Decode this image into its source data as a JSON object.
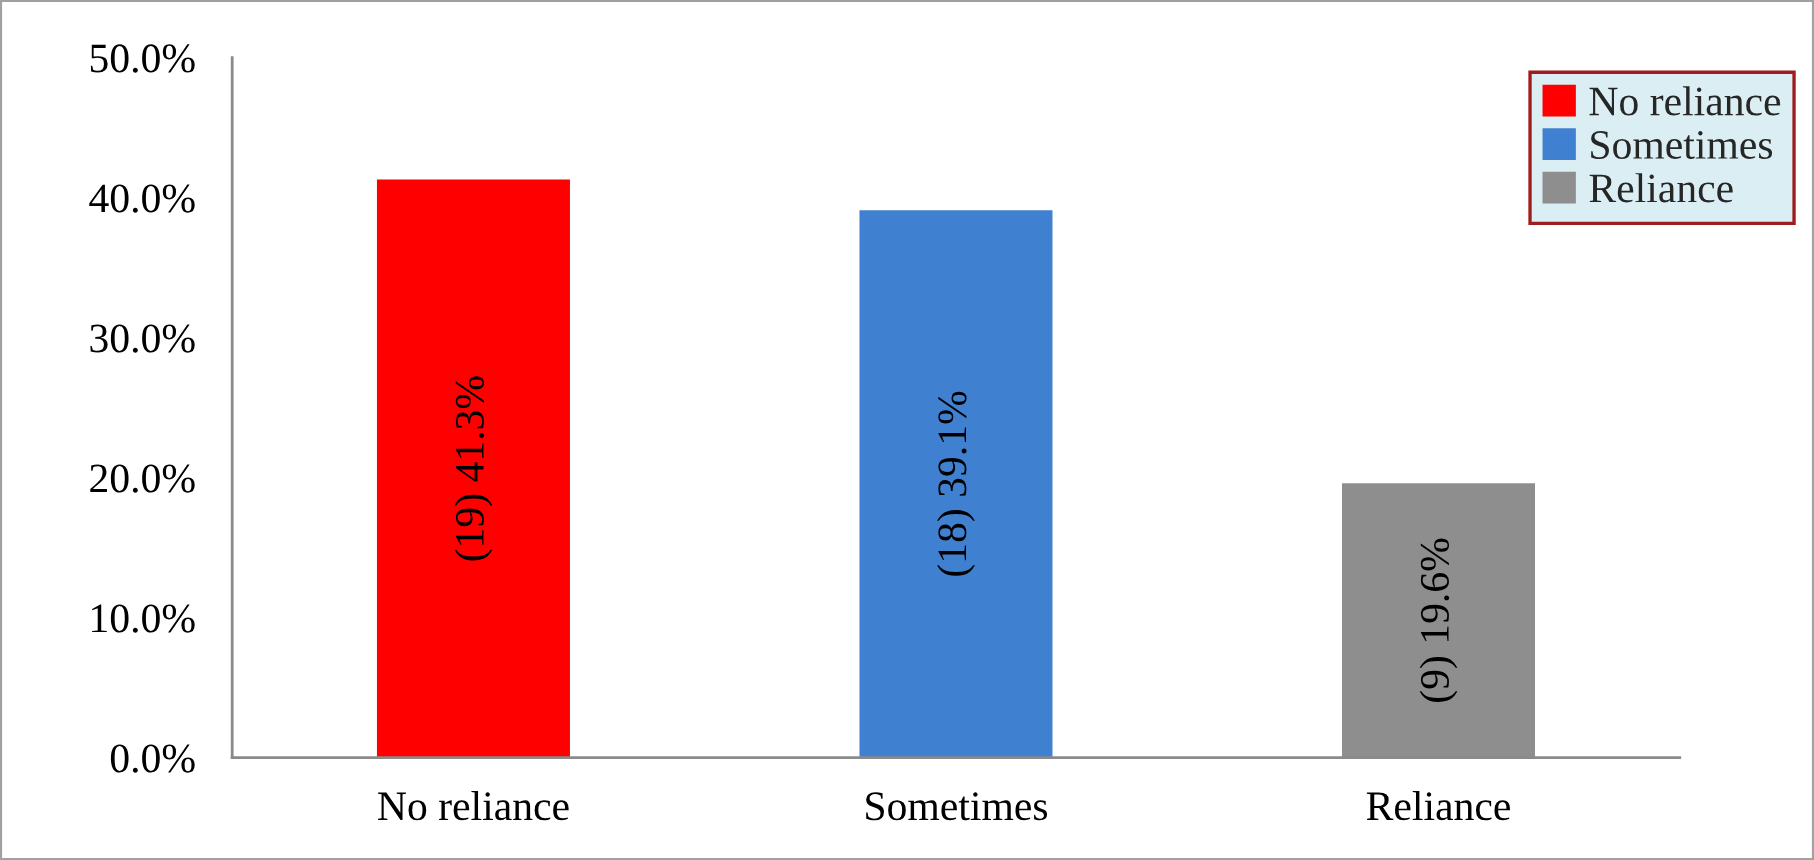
{
  "chart_data": {
    "type": "bar",
    "stacked": true,
    "categories": [
      "No reliance",
      "Sometimes",
      "Reliance"
    ],
    "series": [
      {
        "name": "No reliance",
        "color": "#ff0000",
        "values": [
          41.3,
          null,
          null
        ],
        "value_labels": [
          "(19) 41.3%",
          null,
          null
        ]
      },
      {
        "name": "Sometimes",
        "color": "#4080d0",
        "values": [
          null,
          39.1,
          null
        ],
        "value_labels": [
          null,
          "(18) 39.1%",
          null
        ]
      },
      {
        "name": "Reliance",
        "color": "#8e8e8e",
        "values": [
          null,
          null,
          19.6
        ],
        "value_labels": [
          null,
          null,
          "(9) 19.6%"
        ]
      }
    ],
    "ylim": [
      0,
      50
    ],
    "yticks": [
      {
        "value": 0,
        "label": "0.0%"
      },
      {
        "value": 10,
        "label": "10.0%"
      },
      {
        "value": 20,
        "label": "20.0%"
      },
      {
        "value": 30,
        "label": "30.0%"
      },
      {
        "value": 40,
        "label": "40.0%"
      },
      {
        "value": 50,
        "label": "50.0%"
      }
    ],
    "legend": "top right"
  }
}
